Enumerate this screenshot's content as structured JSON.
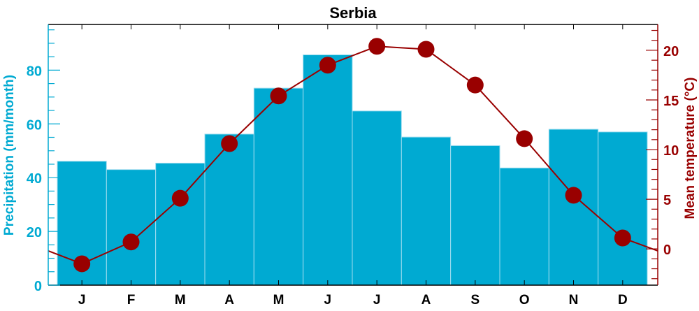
{
  "chart_data": {
    "type": "bar",
    "title": "Serbia",
    "categories": [
      "J",
      "F",
      "M",
      "A",
      "M",
      "J",
      "J",
      "A",
      "S",
      "O",
      "N",
      "D"
    ],
    "series": [
      {
        "kind": "bar",
        "axis": "left",
        "values": [
          46.1,
          43.0,
          45.4,
          56.2,
          73.3,
          85.7,
          64.8,
          55.1,
          51.9,
          43.6,
          58.0,
          57.0
        ]
      },
      {
        "kind": "line-markers",
        "axis": "right",
        "values": [
          -1.5,
          0.7,
          5.1,
          10.6,
          15.4,
          18.5,
          20.4,
          20.1,
          16.5,
          11.1,
          5.4,
          1.1
        ]
      }
    ],
    "ylabel": "Precipitation (mm/month)",
    "ylabel_right": "Mean temperature (°C)",
    "ylim": [
      0,
      97
    ],
    "ylim_right": [
      -3.65,
      22.6
    ],
    "yticks": [
      0,
      20,
      40,
      60,
      80
    ],
    "yticks_right": [
      0,
      5,
      10,
      15,
      20
    ],
    "grid": false,
    "colors": {
      "bar": "#00aad2",
      "bar_edge": "#9fdcef",
      "line": "#990000",
      "left_axis": "#00aad2",
      "right_axis": "#990000",
      "frame": "#000000"
    }
  }
}
